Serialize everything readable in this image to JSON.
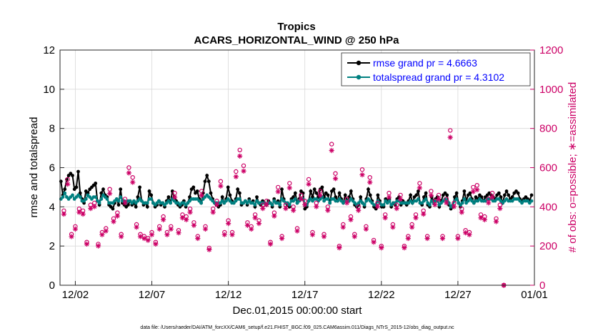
{
  "chart_data": {
    "type": "line",
    "title_line1": "Tropics",
    "title_line2": "ACARS_HORIZONTAL_WIND @ 250 hPa",
    "xlabel": "Dec.01,2015 00:00:00 start",
    "ylabel_left": "rmse and totalspread",
    "ylabel_right": "# of obs: o=possible; ∗=assimilated",
    "footer": "data file: /Users/raeder/DAI/ATM_forcXX/CAM6_setup/f.e21.FHIST_BGC.f09_025.CAM6assim.011/Diags_NTrS_2015-12/obs_diag_output.nc",
    "xlim": [
      0,
      31
    ],
    "ylim_left": [
      0,
      12
    ],
    "ylim_right": [
      0,
      1200
    ],
    "x_ticks": [
      {
        "value": 1,
        "label": "12/02"
      },
      {
        "value": 6,
        "label": "12/07"
      },
      {
        "value": 11,
        "label": "12/12"
      },
      {
        "value": 16,
        "label": "12/17"
      },
      {
        "value": 21,
        "label": "12/22"
      },
      {
        "value": 26,
        "label": "12/27"
      },
      {
        "value": 31,
        "label": "01/01"
      }
    ],
    "y_ticks_left": [
      "0",
      "2",
      "4",
      "6",
      "8",
      "10",
      "12"
    ],
    "y_ticks_right": [
      "0",
      "200",
      "400",
      "600",
      "800",
      "1000",
      "1200"
    ],
    "colors": {
      "rmse": "#000000",
      "totalspread": "#008080",
      "obs": "#cc0066",
      "legend_text": "#0000ff",
      "grid": "#d9d9d9",
      "axis": "#262626"
    },
    "series": [
      {
        "name": "rmse grand pr = 4.6663",
        "marker": "dot",
        "values": [
          5.3,
          4.6,
          4.9,
          5.4,
          5.6,
          5.7,
          5.6,
          4.9,
          5.0,
          5.8,
          4.7,
          4.4,
          4.2,
          4.8,
          4.7,
          4.9,
          5.0,
          5.1,
          5.2,
          4.3,
          4.1,
          4.7,
          4.9,
          4.6,
          4.5,
          4.1,
          4.0,
          3.9,
          4.2,
          4.4,
          4.1,
          4.9,
          4.2,
          4.1,
          4.0,
          4.1,
          4.3,
          4.1,
          4.2,
          4.0,
          4.5,
          5.0,
          4.3,
          4.1,
          4.2,
          4.0,
          4.8,
          4.6,
          4.2,
          4.0,
          4.1,
          4.3,
          4.1,
          4.2,
          4.0,
          4.3,
          4.5,
          4.2,
          4.8,
          4.5,
          4.3,
          4.1,
          4.0,
          4.1,
          4.3,
          4.0,
          4.2,
          4.5,
          4.9,
          5.0,
          4.7,
          4.8,
          4.4,
          4.2,
          4.7,
          5.3,
          5.6,
          5.3,
          4.7,
          4.4,
          4.2,
          4.1,
          4.0,
          4.1,
          4.5,
          4.2,
          4.4,
          5.0,
          4.6,
          4.3,
          4.2,
          4.4,
          4.9,
          4.7,
          4.1,
          4.2,
          4.3,
          4.1,
          4.4,
          4.2,
          4.3,
          4.0,
          4.5,
          4.2,
          4.1,
          4.3,
          4.2,
          4.1,
          4.3,
          4.2,
          4.0,
          4.4,
          4.2,
          4.3,
          4.0,
          4.9,
          4.4,
          4.2,
          4.1,
          4.0,
          4.4,
          4.5,
          4.7,
          4.2,
          4.4,
          4.8,
          4.7,
          3.9,
          4.0,
          4.3,
          4.8,
          4.5,
          4.9,
          4.7,
          4.5,
          4.9,
          5.0,
          4.5,
          4.7,
          4.6,
          4.2,
          4.8,
          4.9,
          4.5,
          4.3,
          4.7,
          4.4,
          4.2,
          4.6,
          4.3,
          4.5,
          4.8,
          4.4,
          4.1,
          4.0,
          4.1,
          4.5,
          4.2,
          4.0,
          4.4,
          4.9,
          4.6,
          4.3,
          4.0,
          3.9,
          4.6,
          4.3,
          4.0,
          4.0,
          4.4,
          4.3,
          4.4,
          4.0,
          4.2,
          4.1,
          4.4,
          4.5,
          4.1,
          4.3,
          4.2,
          4.1,
          4.3,
          4.6,
          4.2,
          4.5,
          4.6,
          4.8,
          4.2,
          4.1,
          4.5,
          4.7,
          4.1,
          4.0,
          4.5,
          4.3,
          4.4,
          4.5,
          4.0,
          4.3,
          4.6,
          4.7,
          4.6,
          4.1,
          3.9,
          4.0,
          4.5,
          4.7,
          4.2,
          4.0,
          4.3,
          4.8,
          4.3,
          4.6,
          4.7,
          4.4,
          4.2,
          4.5,
          4.4,
          4.6,
          4.5,
          4.3,
          4.5,
          4.6,
          4.7,
          4.6,
          4.5,
          4.4,
          4.6,
          4.7,
          4.5,
          4.2,
          4.6,
          4.8,
          4.6,
          4.4,
          4.5,
          4.7,
          4.8,
          4.7,
          4.4,
          4.3,
          4.4,
          4.5,
          4.4,
          4.3,
          4.6
        ]
      },
      {
        "name": "totalspread grand pr = 4.3102",
        "marker": "dot",
        "values": [
          4.4,
          4.5,
          4.7,
          4.5,
          4.4,
          4.5,
          4.6,
          4.4,
          4.5,
          4.6,
          4.5,
          4.3,
          4.3,
          4.4,
          4.6,
          4.5,
          4.4,
          4.5,
          4.5,
          4.3,
          4.2,
          4.4,
          4.6,
          4.5,
          4.4,
          4.2,
          4.2,
          4.2,
          4.3,
          4.4,
          4.3,
          4.5,
          4.3,
          4.3,
          4.2,
          4.3,
          4.3,
          4.2,
          4.3,
          4.2,
          4.3,
          4.4,
          4.3,
          4.2,
          4.2,
          4.2,
          4.4,
          4.4,
          4.2,
          4.1,
          4.2,
          4.3,
          4.2,
          4.2,
          4.1,
          4.2,
          4.3,
          4.2,
          4.4,
          4.3,
          4.2,
          4.2,
          4.1,
          4.2,
          4.2,
          4.1,
          4.2,
          4.3,
          4.4,
          4.4,
          4.4,
          4.4,
          4.3,
          4.2,
          4.4,
          4.5,
          4.6,
          4.5,
          4.4,
          4.3,
          4.2,
          4.2,
          4.2,
          4.2,
          4.3,
          4.2,
          4.3,
          4.4,
          4.3,
          4.2,
          4.2,
          4.3,
          4.4,
          4.4,
          4.2,
          4.2,
          4.3,
          4.2,
          4.3,
          4.2,
          4.2,
          4.1,
          4.3,
          4.2,
          4.2,
          4.2,
          4.2,
          4.1,
          4.2,
          4.2,
          4.1,
          4.3,
          4.2,
          4.2,
          4.1,
          4.4,
          4.3,
          4.2,
          4.2,
          4.1,
          4.3,
          4.3,
          4.4,
          4.2,
          4.3,
          4.4,
          4.4,
          4.1,
          4.1,
          4.3,
          4.4,
          4.3,
          4.4,
          4.4,
          4.3,
          4.4,
          4.5,
          4.3,
          4.4,
          4.4,
          4.2,
          4.4,
          4.4,
          4.3,
          4.3,
          4.4,
          4.3,
          4.2,
          4.3,
          4.3,
          4.3,
          4.4,
          4.3,
          4.2,
          4.1,
          4.2,
          4.3,
          4.2,
          4.1,
          4.3,
          4.4,
          4.3,
          4.2,
          4.1,
          4.1,
          4.3,
          4.2,
          4.1,
          4.1,
          4.3,
          4.2,
          4.3,
          4.1,
          4.2,
          4.2,
          4.3,
          4.3,
          4.2,
          4.2,
          4.2,
          4.2,
          4.2,
          4.3,
          4.2,
          4.3,
          4.3,
          4.4,
          4.2,
          4.2,
          4.3,
          4.4,
          4.2,
          4.1,
          4.3,
          4.2,
          4.3,
          4.3,
          4.1,
          4.2,
          4.3,
          4.4,
          4.3,
          4.2,
          4.0,
          4.1,
          4.3,
          4.4,
          4.2,
          4.1,
          4.2,
          4.4,
          4.2,
          4.3,
          4.4,
          4.3,
          4.2,
          4.3,
          4.3,
          4.4,
          4.3,
          4.3,
          4.3,
          4.4,
          4.4,
          4.4,
          4.3,
          4.3,
          4.4,
          4.4,
          4.3,
          4.2,
          4.3,
          4.4,
          4.3,
          4.3,
          4.3,
          4.4,
          4.4,
          4.4,
          4.3,
          4.2,
          4.3,
          4.3,
          4.3,
          4.2,
          4.3
        ]
      }
    ],
    "obs_points": [
      [
        0.25,
        380
      ],
      [
        0.5,
        540
      ],
      [
        0.75,
        260
      ],
      [
        1.0,
        300
      ],
      [
        1.25,
        390
      ],
      [
        1.5,
        380
      ],
      [
        1.75,
        220
      ],
      [
        2.0,
        410
      ],
      [
        2.25,
        420
      ],
      [
        2.5,
        210
      ],
      [
        2.75,
        270
      ],
      [
        3.0,
        290
      ],
      [
        3.25,
        490
      ],
      [
        3.5,
        340
      ],
      [
        3.75,
        370
      ],
      [
        4.0,
        260
      ],
      [
        4.25,
        440
      ],
      [
        4.5,
        600
      ],
      [
        4.75,
        550
      ],
      [
        5.0,
        310
      ],
      [
        5.25,
        260
      ],
      [
        5.5,
        250
      ],
      [
        5.75,
        240
      ],
      [
        6.0,
        270
      ],
      [
        6.25,
        220
      ],
      [
        6.5,
        300
      ],
      [
        6.75,
        350
      ],
      [
        7.0,
        270
      ],
      [
        7.25,
        300
      ],
      [
        7.5,
        470
      ],
      [
        7.75,
        280
      ],
      [
        8.0,
        360
      ],
      [
        8.25,
        350
      ],
      [
        8.5,
        390
      ],
      [
        8.75,
        320
      ],
      [
        9.0,
        250
      ],
      [
        9.25,
        480
      ],
      [
        9.5,
        300
      ],
      [
        9.75,
        190
      ],
      [
        10.0,
        390
      ],
      [
        10.25,
        430
      ],
      [
        10.5,
        530
      ],
      [
        10.75,
        270
      ],
      [
        11.0,
        330
      ],
      [
        11.25,
        270
      ],
      [
        11.5,
        580
      ],
      [
        11.75,
        690
      ],
      [
        12.0,
        610
      ],
      [
        12.25,
        320
      ],
      [
        12.5,
        300
      ],
      [
        12.75,
        360
      ],
      [
        13.0,
        330
      ],
      [
        13.25,
        410
      ],
      [
        13.5,
        430
      ],
      [
        13.75,
        220
      ],
      [
        14.0,
        370
      ],
      [
        14.25,
        500
      ],
      [
        14.5,
        250
      ],
      [
        14.75,
        410
      ],
      [
        15.0,
        520
      ],
      [
        15.25,
        400
      ],
      [
        15.5,
        290
      ],
      [
        15.75,
        460
      ],
      [
        16.0,
        430
      ],
      [
        16.25,
        540
      ],
      [
        16.5,
        270
      ],
      [
        16.75,
        420
      ],
      [
        17.0,
        480
      ],
      [
        17.25,
        260
      ],
      [
        17.5,
        400
      ],
      [
        17.75,
        720
      ],
      [
        18.0,
        570
      ],
      [
        18.25,
        200
      ],
      [
        18.5,
        310
      ],
      [
        18.75,
        440
      ],
      [
        19.0,
        350
      ],
      [
        19.25,
        260
      ],
      [
        19.5,
        400
      ],
      [
        19.75,
        590
      ],
      [
        20.0,
        300
      ],
      [
        20.25,
        550
      ],
      [
        20.5,
        230
      ],
      [
        20.75,
        420
      ],
      [
        21.0,
        200
      ],
      [
        21.25,
        360
      ],
      [
        21.5,
        470
      ],
      [
        21.75,
        310
      ],
      [
        22.0,
        410
      ],
      [
        22.25,
        460
      ],
      [
        22.5,
        200
      ],
      [
        22.75,
        250
      ],
      [
        23.0,
        310
      ],
      [
        23.25,
        360
      ],
      [
        23.5,
        520
      ],
      [
        23.75,
        380
      ],
      [
        24.0,
        250
      ],
      [
        24.25,
        480
      ],
      [
        24.5,
        430
      ],
      [
        24.75,
        460
      ],
      [
        25.0,
        250
      ],
      [
        25.25,
        440
      ],
      [
        25.5,
        790
      ],
      [
        25.75,
        420
      ],
      [
        26.0,
        250
      ],
      [
        26.25,
        390
      ],
      [
        26.5,
        280
      ],
      [
        26.75,
        270
      ],
      [
        27.0,
        500
      ],
      [
        27.25,
        510
      ],
      [
        27.5,
        360
      ],
      [
        27.75,
        350
      ],
      [
        28.0,
        440
      ],
      [
        28.25,
        470
      ],
      [
        28.5,
        340
      ],
      [
        28.75,
        410
      ],
      [
        29.0,
        0
      ]
    ],
    "legend_location": "top-right"
  }
}
